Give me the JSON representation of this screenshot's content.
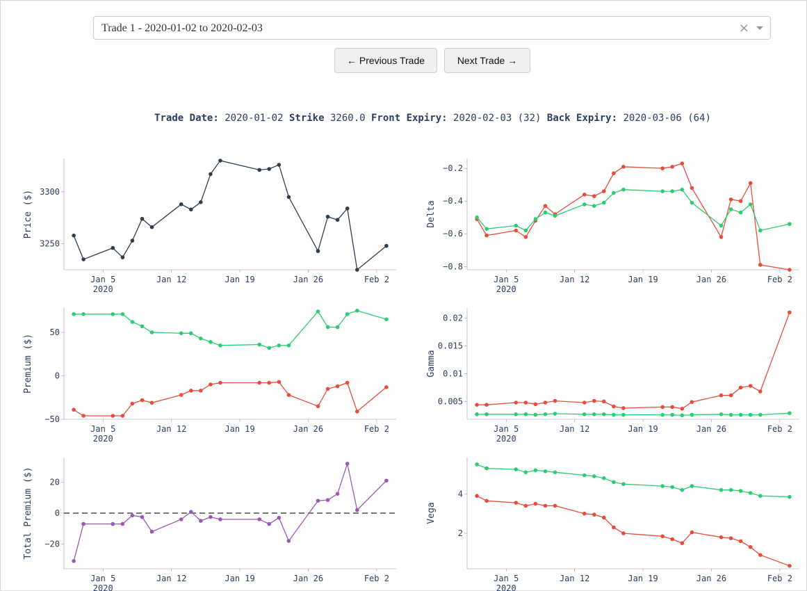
{
  "dropdown": {
    "value": "Trade 1 - 2020-01-02 to 2020-02-03",
    "clear_icon": "×"
  },
  "nav": {
    "prev_label": "← Previous Trade",
    "next_label": "Next Trade →"
  },
  "info": {
    "trade_date_label": "Trade Date:",
    "trade_date": "2020-01-02",
    "strike_label": "Strike",
    "strike": "3260.0",
    "front_label": "Front Expiry:",
    "front": "2020-02-03 (32)",
    "back_label": "Back Expiry:",
    "back": "2020-03-06 (64)"
  },
  "colors": {
    "red": "#e74c3c",
    "green": "#2ecc71",
    "dark": "#2c3e50",
    "purple": "#9b59b6",
    "axis_text": "#2a3f5f"
  },
  "chart_data": [
    {
      "type": "line",
      "id": "price",
      "ylabel": "Price ($)",
      "x": [
        "2020-01-02",
        "2020-01-03",
        "2020-01-06",
        "2020-01-07",
        "2020-01-08",
        "2020-01-09",
        "2020-01-10",
        "2020-01-13",
        "2020-01-14",
        "2020-01-15",
        "2020-01-16",
        "2020-01-17",
        "2020-01-21",
        "2020-01-22",
        "2020-01-23",
        "2020-01-24",
        "2020-01-27",
        "2020-01-28",
        "2020-01-29",
        "2020-01-30",
        "2020-01-31",
        "2020-02-03"
      ],
      "xlim": [
        "2020-01-01",
        "2020-02-04"
      ],
      "xticks": [
        "2020-01-05",
        "2020-01-12",
        "2020-01-19",
        "2020-01-26",
        "2020-02-02"
      ],
      "xtick_labels": [
        "Jan 5",
        "Jan 12",
        "Jan 19",
        "Jan 26",
        "Feb 2"
      ],
      "xsub": "2020",
      "ylim": [
        3225,
        3332
      ],
      "yticks": [
        3250,
        3300
      ],
      "ytick_labels": [
        "3250",
        "3300"
      ],
      "series": [
        {
          "color": "#2c3e50",
          "values": [
            3258,
            3235,
            3246,
            3237,
            3253,
            3274,
            3266,
            3288,
            3283,
            3290,
            3317,
            3330,
            3321,
            3322,
            3326,
            3295,
            3243,
            3276,
            3273,
            3284,
            3225,
            3248
          ]
        }
      ]
    },
    {
      "type": "line",
      "id": "delta",
      "ylabel": "Delta",
      "x": [
        "2020-01-02",
        "2020-01-03",
        "2020-01-06",
        "2020-01-07",
        "2020-01-08",
        "2020-01-09",
        "2020-01-10",
        "2020-01-13",
        "2020-01-14",
        "2020-01-15",
        "2020-01-16",
        "2020-01-17",
        "2020-01-21",
        "2020-01-22",
        "2020-01-23",
        "2020-01-24",
        "2020-01-27",
        "2020-01-28",
        "2020-01-29",
        "2020-01-30",
        "2020-01-31",
        "2020-02-03"
      ],
      "xlim": [
        "2020-01-01",
        "2020-02-04"
      ],
      "xticks": [
        "2020-01-05",
        "2020-01-12",
        "2020-01-19",
        "2020-01-26",
        "2020-02-02"
      ],
      "xtick_labels": [
        "Jan 5",
        "Jan 12",
        "Jan 19",
        "Jan 26",
        "Feb 2"
      ],
      "xsub": "2020",
      "ylim": [
        -0.82,
        -0.14
      ],
      "yticks": [
        -0.8,
        -0.6,
        -0.4,
        -0.2
      ],
      "ytick_labels": [
        "−0.8",
        "−0.6",
        "−0.4",
        "−0.2"
      ],
      "series": [
        {
          "color": "#e74c3c",
          "values": [
            -0.51,
            -0.61,
            -0.58,
            -0.62,
            -0.52,
            -0.43,
            -0.48,
            -0.36,
            -0.37,
            -0.34,
            -0.23,
            -0.19,
            -0.2,
            -0.19,
            -0.17,
            -0.32,
            -0.62,
            -0.39,
            -0.4,
            -0.29,
            -0.79,
            -0.82
          ]
        },
        {
          "color": "#2ecc71",
          "values": [
            -0.5,
            -0.57,
            -0.55,
            -0.58,
            -0.51,
            -0.47,
            -0.49,
            -0.42,
            -0.43,
            -0.41,
            -0.35,
            -0.33,
            -0.34,
            -0.34,
            -0.33,
            -0.41,
            -0.55,
            -0.45,
            -0.47,
            -0.42,
            -0.58,
            -0.54
          ]
        }
      ]
    },
    {
      "type": "line",
      "id": "premium",
      "ylabel": "Premium ($)",
      "x": [
        "2020-01-02",
        "2020-01-03",
        "2020-01-06",
        "2020-01-07",
        "2020-01-08",
        "2020-01-09",
        "2020-01-10",
        "2020-01-13",
        "2020-01-14",
        "2020-01-15",
        "2020-01-16",
        "2020-01-17",
        "2020-01-21",
        "2020-01-22",
        "2020-01-23",
        "2020-01-24",
        "2020-01-27",
        "2020-01-28",
        "2020-01-29",
        "2020-01-30",
        "2020-01-31",
        "2020-02-03"
      ],
      "xlim": [
        "2020-01-01",
        "2020-02-04"
      ],
      "xticks": [
        "2020-01-05",
        "2020-01-12",
        "2020-01-19",
        "2020-01-26",
        "2020-02-02"
      ],
      "xtick_labels": [
        "Jan 5",
        "Jan 12",
        "Jan 19",
        "Jan 26",
        "Feb 2"
      ],
      "xsub": "2020",
      "ylim": [
        -50,
        78
      ],
      "yticks": [
        -50,
        0,
        50
      ],
      "ytick_labels": [
        "−50",
        "0",
        "50"
      ],
      "series": [
        {
          "color": "#2ecc71",
          "values": [
            71,
            71,
            71,
            71,
            62,
            57,
            50,
            49,
            49,
            43,
            39,
            35,
            36,
            32,
            35,
            35,
            74,
            56,
            56,
            71,
            75,
            65
          ]
        },
        {
          "color": "#e74c3c",
          "values": [
            -39,
            -46,
            -46,
            -46,
            -32,
            -28,
            -31,
            -22,
            -17,
            -17,
            -10,
            -8,
            -8,
            -8,
            -7,
            -22,
            -35,
            -15,
            -12,
            -8,
            -41,
            -13
          ]
        }
      ]
    },
    {
      "type": "line",
      "id": "gamma",
      "ylabel": "Gamma",
      "x": [
        "2020-01-02",
        "2020-01-03",
        "2020-01-06",
        "2020-01-07",
        "2020-01-08",
        "2020-01-09",
        "2020-01-10",
        "2020-01-13",
        "2020-01-14",
        "2020-01-15",
        "2020-01-16",
        "2020-01-17",
        "2020-01-21",
        "2020-01-22",
        "2020-01-23",
        "2020-01-24",
        "2020-01-27",
        "2020-01-28",
        "2020-01-29",
        "2020-01-30",
        "2020-01-31",
        "2020-02-03"
      ],
      "xlim": [
        "2020-01-01",
        "2020-02-04"
      ],
      "xticks": [
        "2020-01-05",
        "2020-01-12",
        "2020-01-19",
        "2020-01-26",
        "2020-02-02"
      ],
      "xtick_labels": [
        "Jan 5",
        "Jan 12",
        "Jan 19",
        "Jan 26",
        "Feb 2"
      ],
      "xsub": "2020",
      "ylim": [
        0.0018,
        0.0218
      ],
      "yticks": [
        0.005,
        0.01,
        0.015,
        0.02
      ],
      "ytick_labels": [
        "0.005",
        "0.01",
        "0.015",
        "0.02"
      ],
      "series": [
        {
          "color": "#e74c3c",
          "values": [
            0.0044,
            0.0044,
            0.0048,
            0.0048,
            0.0045,
            0.0048,
            0.0051,
            0.0048,
            0.0051,
            0.005,
            0.0041,
            0.0038,
            0.004,
            0.004,
            0.0037,
            0.0049,
            0.0061,
            0.0061,
            0.0075,
            0.0078,
            0.0068,
            0.021
          ]
        },
        {
          "color": "#2ecc71",
          "values": [
            0.0027,
            0.0027,
            0.0027,
            0.0027,
            0.0026,
            0.0027,
            0.0028,
            0.0027,
            0.0027,
            0.0027,
            0.0026,
            0.0026,
            0.0026,
            0.0026,
            0.0025,
            0.0026,
            0.0027,
            0.0026,
            0.0026,
            0.0026,
            0.0026,
            0.0029
          ]
        }
      ]
    },
    {
      "type": "line",
      "id": "total",
      "ylabel": "Total Premium ($)",
      "x": [
        "2020-01-02",
        "2020-01-03",
        "2020-01-06",
        "2020-01-07",
        "2020-01-08",
        "2020-01-09",
        "2020-01-10",
        "2020-01-13",
        "2020-01-14",
        "2020-01-15",
        "2020-01-16",
        "2020-01-17",
        "2020-01-21",
        "2020-01-22",
        "2020-01-23",
        "2020-01-24",
        "2020-01-27",
        "2020-01-28",
        "2020-01-29",
        "2020-01-30",
        "2020-01-31",
        "2020-02-03"
      ],
      "xlim": [
        "2020-01-01",
        "2020-02-04"
      ],
      "xticks": [
        "2020-01-05",
        "2020-01-12",
        "2020-01-19",
        "2020-01-26",
        "2020-02-02"
      ],
      "xtick_labels": [
        "Jan 5",
        "Jan 12",
        "Jan 19",
        "Jan 26",
        "Feb 2"
      ],
      "xsub": "2020",
      "ylim": [
        -36,
        36
      ],
      "yticks": [
        -20,
        0,
        20
      ],
      "ytick_labels": [
        "−20",
        "0",
        "20"
      ],
      "zero_line": true,
      "series": [
        {
          "color": "#9b59b6",
          "values": [
            -31,
            -7,
            -7,
            -7,
            -1.5,
            -2.5,
            -12,
            -4,
            0.8,
            -5,
            -2.5,
            -4,
            -4,
            -7,
            -3,
            -18,
            8,
            8.5,
            12.5,
            32,
            2,
            21
          ]
        }
      ]
    },
    {
      "type": "line",
      "id": "vega",
      "ylabel": "Vega",
      "x": [
        "2020-01-02",
        "2020-01-03",
        "2020-01-06",
        "2020-01-07",
        "2020-01-08",
        "2020-01-09",
        "2020-01-10",
        "2020-01-13",
        "2020-01-14",
        "2020-01-15",
        "2020-01-16",
        "2020-01-17",
        "2020-01-21",
        "2020-01-22",
        "2020-01-23",
        "2020-01-24",
        "2020-01-27",
        "2020-01-28",
        "2020-01-29",
        "2020-01-30",
        "2020-01-31",
        "2020-02-03"
      ],
      "xlim": [
        "2020-01-01",
        "2020-02-04"
      ],
      "xticks": [
        "2020-01-05",
        "2020-01-12",
        "2020-01-19",
        "2020-01-26",
        "2020-02-02"
      ],
      "xtick_labels": [
        "Jan 5",
        "Jan 12",
        "Jan 19",
        "Jan 26",
        "Feb 2"
      ],
      "xsub": "2020",
      "ylim": [
        0.2,
        5.85
      ],
      "yticks": [
        2,
        4
      ],
      "ytick_labels": [
        "2",
        "4"
      ],
      "series": [
        {
          "color": "#2ecc71",
          "values": [
            5.5,
            5.3,
            5.25,
            5.1,
            5.2,
            5.15,
            5.1,
            4.95,
            4.9,
            4.8,
            4.6,
            4.5,
            4.4,
            4.35,
            4.2,
            4.4,
            4.2,
            4.2,
            4.15,
            4.05,
            3.9,
            3.85
          ]
        },
        {
          "color": "#e74c3c",
          "values": [
            3.9,
            3.65,
            3.55,
            3.4,
            3.5,
            3.4,
            3.4,
            3.0,
            2.95,
            2.8,
            2.3,
            2.0,
            1.85,
            1.7,
            1.5,
            2.05,
            1.8,
            1.75,
            1.6,
            1.3,
            0.9,
            0.35
          ]
        }
      ]
    }
  ]
}
